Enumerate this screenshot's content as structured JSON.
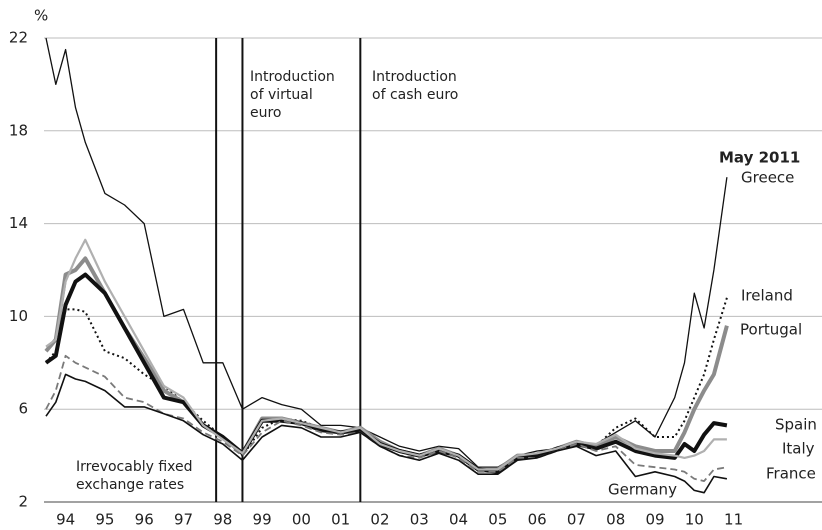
{
  "chart_data": {
    "type": "line",
    "y_label": "%",
    "ylim": [
      2,
      22
    ],
    "yticks": [
      2,
      6,
      10,
      14,
      18,
      22
    ],
    "xlim": [
      1994,
      2013.75
    ],
    "xticks": [
      {
        "value": 1994.5,
        "label": "94"
      },
      {
        "value": 1995.5,
        "label": "95"
      },
      {
        "value": 1996.5,
        "label": "96"
      },
      {
        "value": 1997.5,
        "label": "97"
      },
      {
        "value": 1998.5,
        "label": "98"
      },
      {
        "value": 1999.5,
        "label": "99"
      },
      {
        "value": 2000.5,
        "label": "00"
      },
      {
        "value": 2001.5,
        "label": "01"
      },
      {
        "value": 2002.5,
        "label": "02"
      },
      {
        "value": 2003.5,
        "label": "03"
      },
      {
        "value": 2004.5,
        "label": "04"
      },
      {
        "value": 2005.5,
        "label": "05"
      },
      {
        "value": 2006.5,
        "label": "06"
      },
      {
        "value": 2007.5,
        "label": "07"
      },
      {
        "value": 2008.5,
        "label": "08"
      },
      {
        "value": 2009.5,
        "label": "09"
      },
      {
        "value": 2010.5,
        "label": "10"
      },
      {
        "value": 2011.5,
        "label": "11"
      }
    ],
    "grid": true,
    "vlines": [
      1998.33,
      1999.0,
      2002.0
    ],
    "annotations": [
      {
        "lines": [
          "Irrevocably fixed",
          "exchange rates"
        ]
      },
      {
        "lines": [
          "Introduction",
          "of virtual",
          "euro"
        ]
      },
      {
        "lines": [
          "Introduction",
          "of cash euro"
        ]
      },
      {
        "lines": [
          "May 2011"
        ]
      }
    ],
    "x": [
      1994.0,
      1994.25,
      1994.5,
      1994.75,
      1995.0,
      1995.5,
      1996.0,
      1996.5,
      1997.0,
      1997.5,
      1998.0,
      1998.5,
      1999.0,
      1999.5,
      2000.0,
      2000.5,
      2001.0,
      2001.5,
      2002.0,
      2002.5,
      2003.0,
      2003.5,
      2004.0,
      2004.5,
      2005.0,
      2005.5,
      2006.0,
      2006.5,
      2007.0,
      2007.5,
      2008.0,
      2008.5,
      2009.0,
      2009.5,
      2010.0,
      2010.25,
      2010.5,
      2010.75,
      2011.0,
      2011.33
    ],
    "series": [
      {
        "name": "Greece",
        "color": "#111111",
        "line_width": 1.3,
        "dash": "none",
        "values": [
          22,
          20,
          21.5,
          19,
          17.5,
          15.3,
          14.8,
          14,
          10,
          10.3,
          8,
          8,
          6,
          6.5,
          6.2,
          6,
          5.3,
          5.3,
          5.2,
          4.8,
          4.4,
          4.2,
          4.4,
          4.3,
          3.5,
          3.5,
          4,
          4.2,
          4.3,
          4.6,
          4.5,
          5,
          5.5,
          4.8,
          6.5,
          8,
          11,
          9.5,
          12,
          16
        ]
      },
      {
        "name": "Ireland",
        "color": "#111111",
        "line_width": 2,
        "dash": "2,3",
        "values": [
          8,
          8.5,
          10.3,
          10.3,
          10.2,
          8.5,
          8.2,
          7.5,
          7,
          6.3,
          5.5,
          4.8,
          4,
          5.2,
          5.6,
          5.5,
          5.2,
          5,
          5.2,
          4.6,
          4.2,
          4,
          4.2,
          4,
          3.4,
          3.4,
          3.9,
          4.1,
          4.3,
          4.6,
          4.4,
          5.2,
          5.6,
          4.8,
          4.8,
          5.5,
          6.5,
          7.5,
          9,
          10.8
        ]
      },
      {
        "name": "Portugal",
        "color": "#8c8c8c",
        "line_width": 4,
        "dash": "none",
        "values": [
          8.5,
          9,
          11.8,
          12,
          12.5,
          11,
          9.5,
          8.2,
          6.8,
          6.3,
          5.3,
          4.8,
          4.1,
          5.6,
          5.6,
          5.4,
          5.2,
          5,
          5.2,
          4.6,
          4.2,
          4,
          4.3,
          4,
          3.4,
          3.4,
          4,
          4,
          4.3,
          4.6,
          4.4,
          4.8,
          4.4,
          4.2,
          4.2,
          5,
          6,
          6.8,
          7.5,
          9.6
        ]
      },
      {
        "name": "Spain",
        "color": "#111111",
        "line_width": 4,
        "dash": "none",
        "values": [
          8,
          8.3,
          10.5,
          11.5,
          11.8,
          11,
          9.5,
          8,
          6.5,
          6.3,
          5.3,
          4.8,
          4.1,
          5.5,
          5.5,
          5.4,
          5.1,
          5,
          5.1,
          4.5,
          4.2,
          4,
          4.2,
          4,
          3.4,
          3.3,
          3.9,
          4,
          4.3,
          4.5,
          4.3,
          4.6,
          4.2,
          4,
          3.9,
          4.5,
          4.2,
          4.9,
          5.4,
          5.3
        ]
      },
      {
        "name": "Italy",
        "color": "#b0b0b0",
        "line_width": 2.2,
        "dash": "none",
        "values": [
          8.7,
          9,
          11.5,
          12.5,
          13.3,
          11.5,
          10,
          8.5,
          7,
          6.5,
          5.3,
          4.7,
          4.1,
          5.5,
          5.6,
          5.4,
          5.2,
          5,
          5.2,
          4.5,
          4.2,
          4,
          4.3,
          4,
          3.4,
          3.4,
          4,
          4.1,
          4.3,
          4.6,
          4.5,
          4.9,
          4.3,
          4.1,
          4,
          3.9,
          4,
          4.2,
          4.7,
          4.7
        ]
      },
      {
        "name": "France",
        "color": "#7a7a7a",
        "line_width": 1.8,
        "dash": "7,4",
        "values": [
          6,
          6.8,
          8.3,
          8,
          7.8,
          7.4,
          6.5,
          6.3,
          5.8,
          5.6,
          5,
          4.6,
          4,
          5,
          5.5,
          5.3,
          5,
          4.9,
          5,
          4.4,
          4,
          3.9,
          4.2,
          3.9,
          3.3,
          3.3,
          3.9,
          3.9,
          4.2,
          4.5,
          4.2,
          4.4,
          3.6,
          3.5,
          3.4,
          3.3,
          3,
          2.9,
          3.4,
          3.5
        ]
      },
      {
        "name": "Germany",
        "color": "#111111",
        "line_width": 1.6,
        "dash": "none",
        "values": [
          5.7,
          6.3,
          7.5,
          7.3,
          7.2,
          6.8,
          6.1,
          6.1,
          5.8,
          5.5,
          4.9,
          4.5,
          3.8,
          4.8,
          5.3,
          5.2,
          4.8,
          4.8,
          5,
          4.4,
          4,
          3.8,
          4.1,
          3.8,
          3.2,
          3.2,
          3.8,
          3.9,
          4.2,
          4.4,
          4,
          4.2,
          3.1,
          3.3,
          3.1,
          2.9,
          2.5,
          2.4,
          3.1,
          3
        ]
      }
    ]
  }
}
